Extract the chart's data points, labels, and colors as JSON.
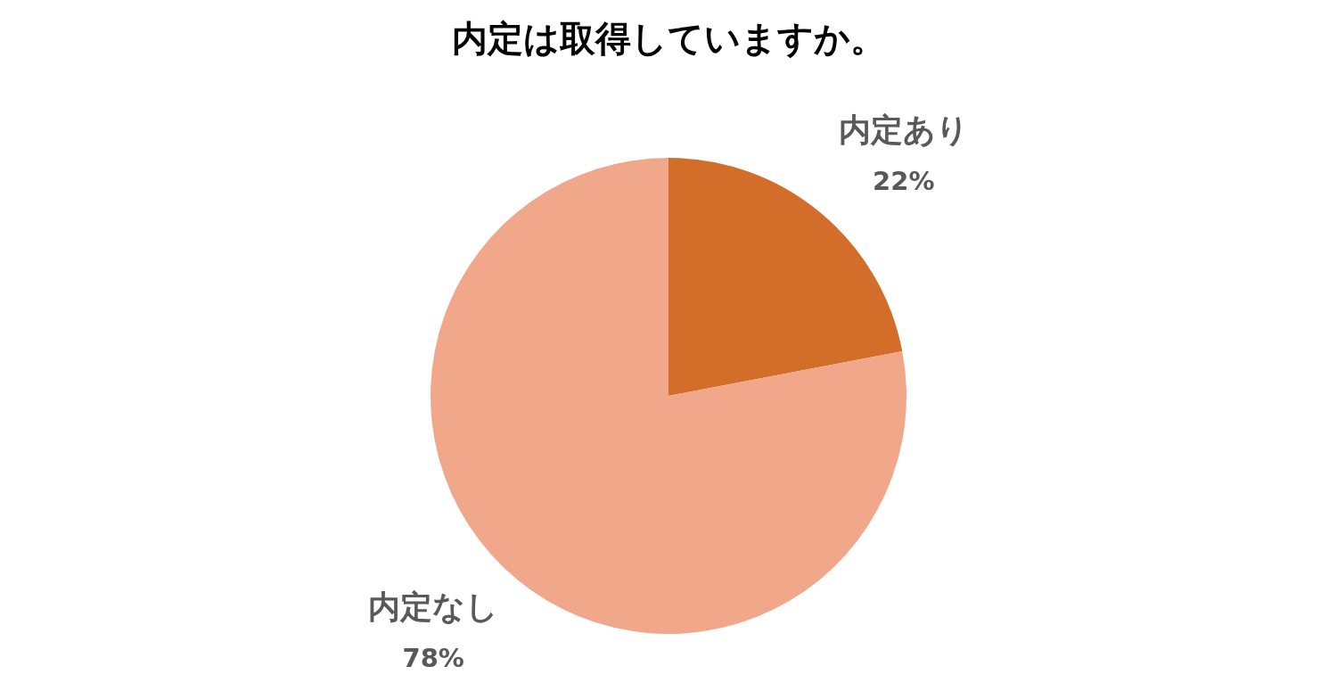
{
  "chart_data": {
    "type": "pie",
    "title": "内定は取得していますか。",
    "categories": [
      "内定あり",
      "内定なし"
    ],
    "values": [
      22,
      78
    ],
    "colors": [
      "#d36e2a",
      "#f0a78a"
    ],
    "value_labels": [
      "22%",
      "78%"
    ]
  }
}
